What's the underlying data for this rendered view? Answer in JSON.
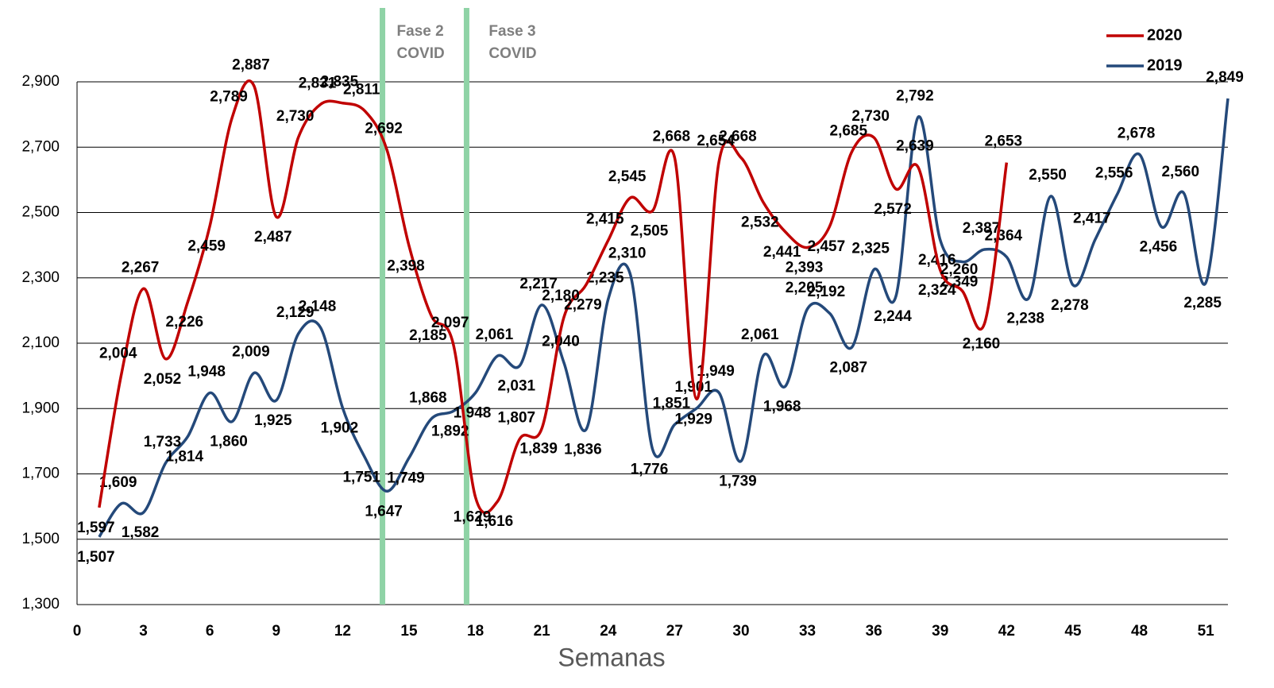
{
  "chart_data": {
    "type": "line",
    "x_label": "Semanas",
    "x": [
      1,
      2,
      3,
      4,
      5,
      6,
      7,
      8,
      9,
      10,
      11,
      12,
      13,
      14,
      15,
      16,
      17,
      18,
      19,
      20,
      21,
      22,
      23,
      24,
      25,
      26,
      27,
      28,
      29,
      30,
      31,
      32,
      33,
      34,
      35,
      36,
      37,
      38,
      39,
      40,
      41,
      42,
      43,
      44,
      45,
      46,
      47,
      48,
      49,
      50,
      51,
      52
    ],
    "xlim": [
      0,
      52
    ],
    "xticks": [
      0,
      3,
      6,
      9,
      12,
      15,
      18,
      21,
      24,
      27,
      30,
      33,
      36,
      39,
      42,
      45,
      48,
      51
    ],
    "ylim": [
      1300,
      2900
    ],
    "yticks": [
      {
        "value": 1300,
        "label": "1,300"
      },
      {
        "value": 1500,
        "label": "1,500"
      },
      {
        "value": 1700,
        "label": "1,700"
      },
      {
        "value": 1900,
        "label": "1,900"
      },
      {
        "value": 2100,
        "label": "2,100"
      },
      {
        "value": 2300,
        "label": "2,300"
      },
      {
        "value": 2500,
        "label": "2,500"
      },
      {
        "value": 2700,
        "label": "2,700"
      },
      {
        "value": 2900,
        "label": "2,900"
      }
    ],
    "grid": true,
    "legend": "top-right",
    "annotations": [
      {
        "text": [
          "Fase 2",
          "COVID"
        ],
        "x": 13.8,
        "color": "#8fd3a6"
      },
      {
        "text": [
          "Fase 3",
          "COVID"
        ],
        "x": 17.6,
        "color": "#8fd3a6"
      }
    ],
    "series": [
      {
        "name": "2020",
        "color": "#c00000",
        "values": [
          1597,
          2004,
          2267,
          2052,
          2226,
          2459,
          2789,
          2887,
          2487,
          2730,
          2831,
          2835,
          2811,
          2692,
          2398,
          2185,
          2097,
          1629,
          1616,
          1807,
          1839,
          2180,
          2279,
          2415,
          2545,
          2505,
          2668,
          1929,
          2654,
          2668,
          2532,
          2441,
          2393,
          2457,
          2685,
          2730,
          2572,
          2639,
          2324,
          2260,
          2160,
          2653,
          null,
          null,
          null,
          null,
          null,
          null,
          null,
          null,
          null,
          null
        ],
        "value_labels": [
          "1,597",
          "2,004",
          "2,267",
          "2,052",
          "2,226",
          "2,459",
          "2,789",
          "2,887",
          "2,487",
          "2,730",
          "2,831",
          "2,835",
          "2,811",
          "2,692",
          "2,398",
          "2,185",
          "2,097",
          "1,629",
          "1,616",
          "1,807",
          "1,839",
          "2,180",
          "2,279",
          "2,415",
          "2,545",
          "2,505",
          "2,668",
          "1,929",
          "2,654",
          "2,668",
          "2,532",
          "2,441",
          "2,393",
          "2,457",
          "2,685",
          "2,730",
          "2,572",
          "2,639",
          "2,324",
          "2,260",
          "2,160",
          "2,653",
          null,
          null,
          null,
          null,
          null,
          null,
          null,
          null,
          null,
          null
        ]
      },
      {
        "name": "2019",
        "color": "#24497a",
        "values": [
          1507,
          1609,
          1582,
          1733,
          1814,
          1948,
          1860,
          2009,
          1925,
          2129,
          2148,
          1902,
          1751,
          1647,
          1749,
          1868,
          1892,
          1948,
          2061,
          2031,
          2217,
          2040,
          1836,
          2235,
          2310,
          1776,
          1851,
          1901,
          1949,
          1739,
          2061,
          1968,
          2205,
          2192,
          2087,
          2325,
          2244,
          2792,
          2416,
          2349,
          2387,
          2364,
          2238,
          2550,
          2278,
          2417,
          2556,
          2678,
          2456,
          2560,
          2285,
          2849
        ],
        "value_labels": [
          "1,507",
          "1,609",
          "1,582",
          "1,733",
          "1,814",
          "1,948",
          "1,860",
          "2,009",
          "1,925",
          "2,129",
          "2,148",
          "1,902",
          "1,751",
          "1,647",
          "1,749",
          "1,868",
          "1,892",
          "1,948",
          "2,061",
          "2,031",
          "2,217",
          "2,040",
          "1,836",
          "2,235",
          "2,310",
          "1,776",
          "1,851",
          "1,901",
          "1,949",
          "1,739",
          "2,061",
          "1,968",
          "2,205",
          "2,192",
          "2,087",
          "2,325",
          "2,244",
          "2,792",
          "2,416",
          "2,349",
          "2,387",
          "2,364",
          "2,238",
          "2,550",
          "2,278",
          "2,417",
          "2,556",
          "2,678",
          "2,456",
          "2,560",
          "2,285",
          "2,849"
        ]
      }
    ]
  }
}
